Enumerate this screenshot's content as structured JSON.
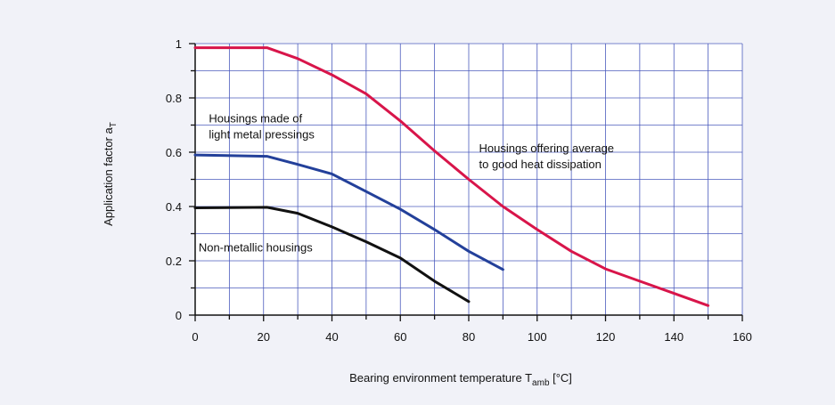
{
  "chart_data": {
    "type": "line",
    "xlabel_main": "Bearing environment temperature T",
    "xlabel_sub": "amb",
    "xlabel_tail": " [°C]",
    "ylabel_main": "Application factor a",
    "ylabel_sub": "T",
    "xlim": [
      0,
      160
    ],
    "ylim": [
      0,
      1
    ],
    "x_ticks": [
      0,
      20,
      40,
      60,
      80,
      100,
      120,
      140,
      160
    ],
    "y_ticks": [
      0,
      0.2,
      0.4,
      0.6,
      0.8,
      1
    ],
    "y_tick_labels": [
      "0",
      "0.2",
      "0.4",
      "0.6",
      "0.8",
      "1"
    ],
    "grid": true,
    "series": [
      {
        "color": "#d8154a",
        "points": [
          [
            0,
            0.985
          ],
          [
            21,
            0.985
          ],
          [
            30,
            0.945
          ],
          [
            40,
            0.885
          ],
          [
            50,
            0.815
          ],
          [
            60,
            0.715
          ],
          [
            70,
            0.605
          ],
          [
            80,
            0.5
          ],
          [
            90,
            0.4
          ],
          [
            100,
            0.315
          ],
          [
            110,
            0.235
          ],
          [
            120,
            0.17
          ],
          [
            130,
            0.125
          ],
          [
            140,
            0.08
          ],
          [
            150,
            0.035
          ]
        ]
      },
      {
        "color": "#23409a",
        "points": [
          [
            0,
            0.59
          ],
          [
            21,
            0.585
          ],
          [
            30,
            0.555
          ],
          [
            40,
            0.52
          ],
          [
            50,
            0.455
          ],
          [
            60,
            0.39
          ],
          [
            70,
            0.315
          ],
          [
            80,
            0.235
          ],
          [
            90,
            0.168
          ]
        ]
      },
      {
        "color": "#111111",
        "points": [
          [
            0,
            0.395
          ],
          [
            21,
            0.397
          ],
          [
            30,
            0.375
          ],
          [
            40,
            0.325
          ],
          [
            50,
            0.27
          ],
          [
            60,
            0.21
          ],
          [
            70,
            0.125
          ],
          [
            80,
            0.05
          ]
        ]
      }
    ],
    "annotations": [
      {
        "lines": [
          "Housings made of",
          "light metal pressings"
        ]
      },
      {
        "lines": [
          "Housings offering average",
          "to good heat dissipation"
        ]
      },
      {
        "lines": [
          "Non-metallic housings"
        ]
      }
    ]
  }
}
